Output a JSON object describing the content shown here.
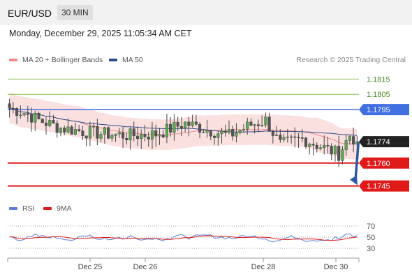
{
  "header": {
    "symbol": "EUR/USD",
    "timeframe": "30 MIN"
  },
  "datetime": "Monday, December 29, 2025 11:05:34 AM CET",
  "legend": {
    "items": [
      {
        "label": "MA 20 + Bollinger Bands",
        "color": "#f08a8a"
      },
      {
        "label": "MA 50",
        "color": "#2b4d8c"
      }
    ],
    "credit": "Research © 2025 Trading Central"
  },
  "rsi_legend": {
    "items": [
      {
        "label": "RSI",
        "color": "#5b7fd6"
      },
      {
        "label": "9MA",
        "color": "#e01919"
      }
    ]
  },
  "chart_data": {
    "type": "candlestick",
    "ylim": [
      1.1738,
      1.1822
    ],
    "current_price": "1.1774",
    "x_axis": {
      "ticks": [
        "Dec 25",
        "Dec 26",
        "Dec 28",
        "Dec 30"
      ]
    },
    "levels": [
      {
        "value": 1.1815,
        "label": "1.1815",
        "color": "#8bc34a",
        "kind": "target"
      },
      {
        "value": 1.1805,
        "label": "1.1805",
        "color": "#8bc34a",
        "kind": "target"
      },
      {
        "value": 1.1795,
        "label": "1.1795",
        "color": "#3f6fe0",
        "kind": "pivot"
      },
      {
        "value": 1.176,
        "label": "1.1760",
        "color": "#e01919",
        "kind": "support"
      },
      {
        "value": 1.1745,
        "label": "1.1745",
        "color": "#e01919",
        "kind": "support"
      }
    ],
    "arrow": {
      "from": 1.1774,
      "to": 1.1746,
      "direction": "down",
      "color": "#2b5aa0"
    },
    "rsi": {
      "ylim": [
        20,
        80
      ],
      "ticks": [
        70,
        50,
        30
      ]
    }
  }
}
